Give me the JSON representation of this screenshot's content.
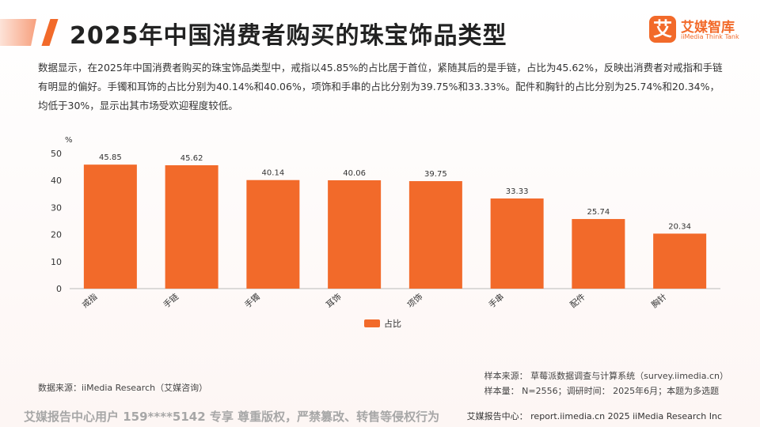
{
  "header": {
    "title": "2025年中国消费者购买的珠宝饰品类型",
    "logo_mark": "艾",
    "logo_cn": "艾媒智库",
    "logo_en": "iiMedia Think Tank"
  },
  "description": "数据显示，在2025年中国消费者购买的珠宝饰品类型中，戒指以45.85%的占比居于首位，紧随其后的是手链，占比为45.62%，反映出消费者对戒指和手链有明显的偏好。手镯和耳饰的占比分别为40.14%和40.06%，项饰和手串的占比分别为39.75%和33.33%。配件和胸针的占比分别为25.74%和20.34%，均低于30%，显示出其市场受欢迎程度较低。",
  "chart_data": {
    "type": "bar",
    "title": "",
    "xlabel": "",
    "ylabel": "%",
    "ylim": [
      0,
      50
    ],
    "yticks": [
      0,
      10,
      20,
      30,
      40,
      50
    ],
    "categories": [
      "戒指",
      "手链",
      "手镯",
      "耳饰",
      "项饰",
      "手串",
      "配件",
      "胸针"
    ],
    "series": [
      {
        "name": "占比",
        "values": [
          45.85,
          45.62,
          40.14,
          40.06,
          39.75,
          33.33,
          25.74,
          20.34
        ]
      }
    ],
    "data_labels": [
      "45.85",
      "45.62",
      "40.14",
      "40.06",
      "39.75",
      "33.33",
      "25.74",
      "20.34"
    ],
    "bar_color": "#f26a2a",
    "grid": false,
    "legend_position": "bottom-center"
  },
  "sources": {
    "data_source": "数据来源：iiMedia Research（艾媒咨询）",
    "sample_source": "样本来源：  草莓派数据调查与计算系统（survey.iimedia.cn）",
    "sample_info": "样本量：  N=2556；调研时间：  2025年6月；本题为多选题"
  },
  "footer": {
    "watermark": "艾媒报告中心用户 159****5142 专享 尊重版权，严禁篡改、转售等侵权行为",
    "site": "艾媒报告中心：  report.iimedia.cn   2025 iiMedia Research Inc"
  },
  "colors": {
    "accent": "#f26a2a",
    "footer_text": "#a7a7a7"
  }
}
